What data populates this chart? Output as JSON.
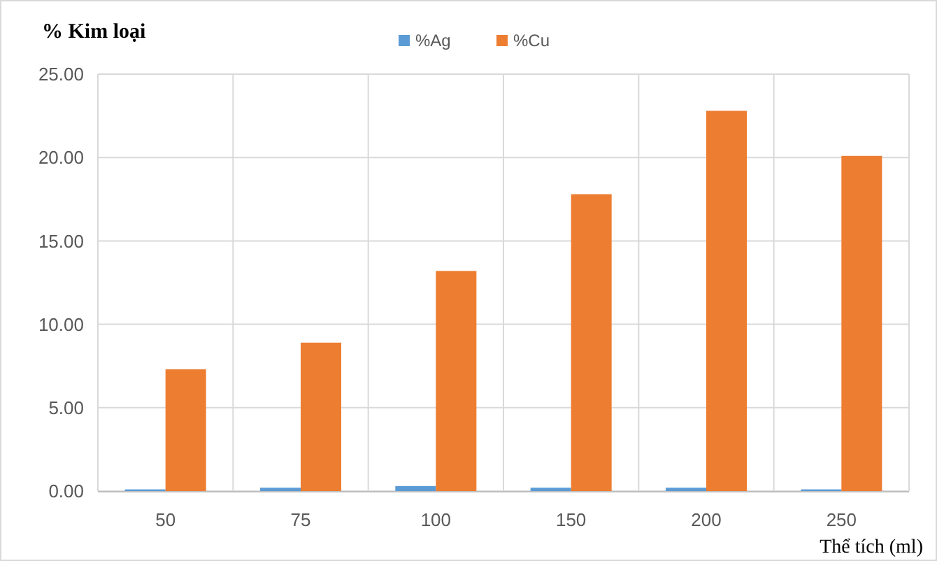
{
  "chart_data": {
    "type": "bar",
    "ylabel": "% Kim loại",
    "xlabel": "Thể tích (ml)",
    "categories": [
      "50",
      "75",
      "100",
      "150",
      "200",
      "250"
    ],
    "series": [
      {
        "name": "%Ag",
        "color": "#5b9bd5",
        "values": [
          0.1,
          0.2,
          0.3,
          0.2,
          0.2,
          0.1
        ]
      },
      {
        "name": "%Cu",
        "color": "#ed7d31",
        "values": [
          7.3,
          8.9,
          13.2,
          17.8,
          22.8,
          20.1
        ]
      }
    ],
    "ylim": [
      0,
      25
    ],
    "yticks": [
      {
        "value": 0,
        "label": "0.00"
      },
      {
        "value": 5,
        "label": "5.00"
      },
      {
        "value": 10,
        "label": "10.00"
      },
      {
        "value": 15,
        "label": "15.00"
      },
      {
        "value": 20,
        "label": "20.00"
      },
      {
        "value": 25,
        "label": "25.00"
      }
    ],
    "grid": true,
    "legend": "top"
  }
}
